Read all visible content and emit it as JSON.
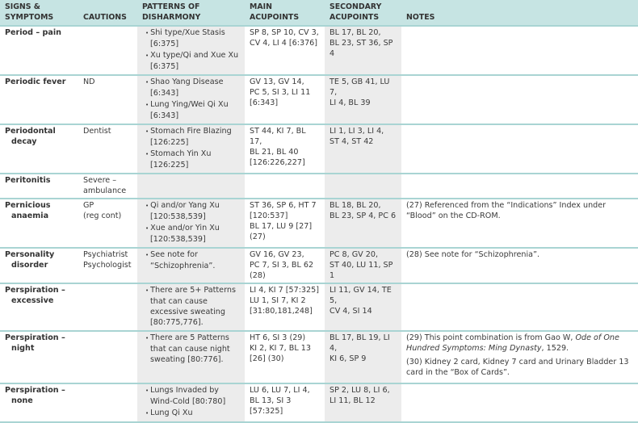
{
  "headers": [
    "SIGNS & SYMPTOMS",
    "CAUTIONS",
    "PATTERNS OF DISHARMONY",
    "MAIN ACUPOINTS",
    "SECONDARY ACUPOINTS",
    "NOTES"
  ],
  "header_lines": [
    [
      "SIGNS &",
      "SYMPTOMS"
    ],
    [
      "CAUTIONS"
    ],
    [
      "PATTERNS OF",
      "DISHARMONY"
    ],
    [
      "MAIN",
      "ACUPOINTS"
    ],
    [
      "SECONDARY",
      "ACUPOINTS"
    ],
    [
      "NOTES"
    ]
  ],
  "colors": {
    "header_bg": "#c6e4e3",
    "row_rule": "#a9d4d3",
    "shaded_column": "#ececec"
  },
  "rows": [
    {
      "sign": [
        "Period – pain"
      ],
      "cautions": [],
      "patterns": [
        "Shi type/Xue Stasis [6:375]",
        "Xu type/Qi and Xue Xu [6:375]"
      ],
      "main": [
        "SP 8, SP 10, CV 3,",
        "CV 4, LI 4 [6:376]"
      ],
      "secondary": [
        "BL 17, BL 20,",
        "BL 23, ST 36, SP 4"
      ],
      "notes": []
    },
    {
      "sign": [
        "Periodic fever"
      ],
      "cautions": [
        "ND"
      ],
      "patterns": [
        "Shao Yang Disease [6:343]",
        "Lung Ying/Wei Qi Xu [6:343]"
      ],
      "main": [
        "GV 13, GV 14,",
        "PC 5, SI 3, LI 11",
        "[6:343]"
      ],
      "secondary": [
        "TE 5, GB 41, LU 7,",
        "LI 4, BL 39"
      ],
      "notes": []
    },
    {
      "sign": [
        "Periodontal",
        "decay"
      ],
      "cautions": [
        "Dentist"
      ],
      "patterns": [
        "Stomach Fire Blazing [126:225]",
        "Stomach Yin Xu [126:225]"
      ],
      "main": [
        "ST 44, KI 7, BL 17,",
        "BL 21, BL 40",
        "[126:226,227]"
      ],
      "secondary": [
        "LI 1, LI 3, LI 4,",
        "ST 4, ST 42"
      ],
      "notes": []
    },
    {
      "sign": [
        "Peritonitis"
      ],
      "cautions": [
        "Severe –",
        "ambulance"
      ],
      "patterns": [],
      "main": [],
      "secondary": [],
      "notes": []
    },
    {
      "sign": [
        "Pernicious",
        "anaemia"
      ],
      "cautions": [
        "GP",
        "(reg cont)"
      ],
      "patterns": [
        "Qi and/or Yang Xu [120:538,539]",
        "Xue and/or Yin Xu [120:538,539]"
      ],
      "main": [
        "ST 36, SP 6, HT 7",
        "[120:537]",
        "BL 17, LU 9 [27]",
        "(27)"
      ],
      "secondary": [
        "BL 18, BL 20,",
        "BL 23, SP 4, PC 6"
      ],
      "notes": [
        {
          "text": "(27) Referenced from the “Indications” Index under “Blood” on the CD-ROM."
        }
      ]
    },
    {
      "sign": [
        "Personality",
        "disorder"
      ],
      "cautions": [
        "Psychiatrist",
        "Psychologist"
      ],
      "patterns": [
        "See note for “Schizophrenia”."
      ],
      "main": [
        "GV 16, GV 23,",
        "PC 7, SI 3, BL 62",
        "(28)"
      ],
      "secondary": [
        "PC 8, GV 20,",
        "ST 40, LU 11, SP 1"
      ],
      "notes": [
        {
          "text": "(28) See note for “Schizophrenia”."
        }
      ]
    },
    {
      "sign": [
        "Perspiration –",
        "excessive"
      ],
      "cautions": [],
      "patterns": [
        "There are 5+ Patterns that can cause excessive sweating [80:775,776]."
      ],
      "main": [
        "LI 4, KI 7 [57:325]",
        "LU 1, SI 7, KI 2",
        "[31:80,181,248]"
      ],
      "secondary": [
        "LI 11, GV 14, TE 5,",
        "CV 4, SI 14"
      ],
      "notes": []
    },
    {
      "sign": [
        "Perspiration –",
        "night"
      ],
      "cautions": [],
      "patterns": [
        "There are 5 Patterns that can cause night sweating [80:776]."
      ],
      "main": [
        "HT 6, SI 3 (29)",
        "KI 2, KI 7, BL 13",
        "[26] (30)"
      ],
      "secondary": [
        "BL 17, BL 19, LI 4,",
        "KI 6, SP 9"
      ],
      "notes": [
        {
          "before": "(29) This point combination is from Gao W, ",
          "italic": "Ode of One Hundred Symptoms: Ming Dynasty",
          "after": ", 1529."
        },
        {
          "text": "(30) Kidney 2 card, Kidney 7 card and Urinary Bladder 13 card in the “Box of Cards”."
        }
      ]
    },
    {
      "sign": [
        "Perspiration –",
        "none"
      ],
      "cautions": [],
      "patterns": [
        "Lungs Invaded by Wind-Cold [80:780]",
        "Lung Qi Xu"
      ],
      "main": [
        "LU 6, LU 7, LI 4,",
        "BL 13, SI 3",
        "[57:325]"
      ],
      "secondary": [
        "SP 2, LU 8, LI 6,",
        "LI 11, BL 12"
      ],
      "notes": []
    }
  ]
}
